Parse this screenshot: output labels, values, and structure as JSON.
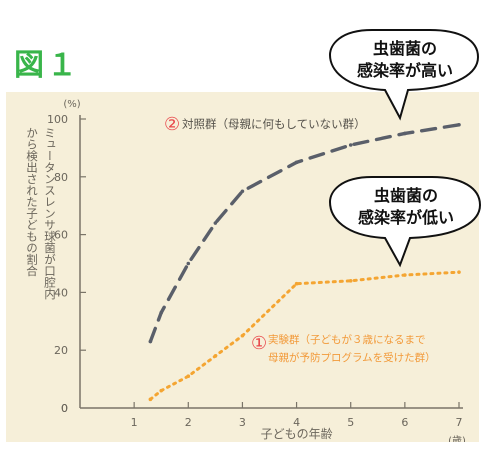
{
  "figure": {
    "title": "図１"
  },
  "callouts": {
    "high": {
      "line1": "虫歯菌の",
      "line2": "感染率が高い"
    },
    "low": {
      "line1": "虫歯菌の",
      "line2": "感染率が低い"
    }
  },
  "chart_data": {
    "type": "line",
    "xlabel": "子どもの年齢",
    "x_unit": "(歳)",
    "ylabel": "ミュータンスレンサ球菌が口腔内から検出された子どもの割合",
    "y_unit": "(%)",
    "xlim": [
      0,
      7
    ],
    "ylim": [
      0,
      100
    ],
    "x_ticks": [
      "0",
      "1",
      "2",
      "3",
      "4",
      "5",
      "6",
      "7"
    ],
    "y_ticks": [
      "0",
      "20",
      "40",
      "60",
      "80",
      "100"
    ],
    "grid": false,
    "series": [
      {
        "name": "対照群（母親に何もしていない群）",
        "marker": "②",
        "color": "#5a5f6a",
        "style": "dashed",
        "x": [
          1.3,
          1.5,
          2.0,
          2.5,
          3.0,
          4.0,
          5.0,
          6.0,
          7.0
        ],
        "y": [
          23,
          33,
          50,
          64,
          75,
          85,
          91,
          95,
          98
        ]
      },
      {
        "name": "実験群（子どもが３歳になるまで母親が予防プログラムを受けた群）",
        "name_line1": "実験群（子どもが３歳になるまで",
        "name_line2": "母親が予防プログラムを受けた群）",
        "marker": "①",
        "color": "#f4a532",
        "style": "dotted",
        "x": [
          1.3,
          1.5,
          2.0,
          2.5,
          3.0,
          4.0,
          5.0,
          6.0,
          7.0
        ],
        "y": [
          3,
          6,
          11,
          18,
          25,
          43,
          44,
          46,
          47
        ]
      }
    ]
  }
}
